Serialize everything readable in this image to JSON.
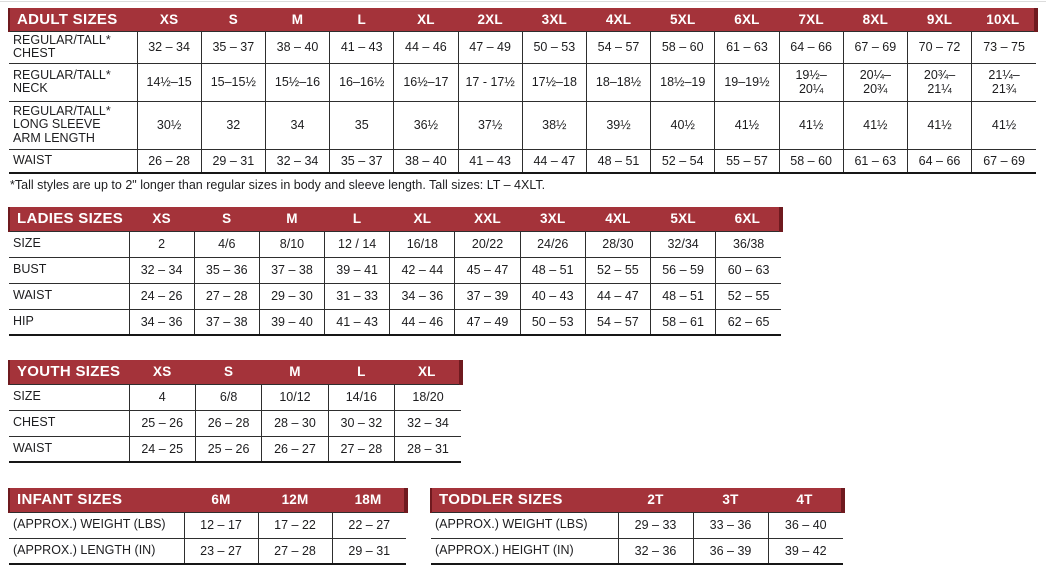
{
  "palette": {
    "header_bg": "#A4333A",
    "header_edge": "#6F1A1F",
    "header_text": "#FFFFFF",
    "line": "#2E2E2E",
    "line_heavy": "#161616",
    "text": "#1D1D1F"
  },
  "tables": [
    {
      "id": "adult-sizes",
      "title": "ADULT SIZES",
      "columns": [
        "XS",
        "S",
        "M",
        "L",
        "XL",
        "2XL",
        "3XL",
        "4XL",
        "5XL",
        "6XL",
        "7XL",
        "8XL",
        "9XL",
        "10XL"
      ],
      "rows": [
        {
          "label": "REGULAR/TALL*\nCHEST",
          "values": [
            "32 – 34",
            "35 – 37",
            "38 – 40",
            "41 – 43",
            "44 – 46",
            "47 – 49",
            "50 – 53",
            "54 – 57",
            "58 – 60",
            "61 – 63",
            "64 – 66",
            "67 – 69",
            "70 – 72",
            "73 – 75"
          ]
        },
        {
          "label": "REGULAR/TALL*\nNECK",
          "values": [
            "14½–15",
            "15–15½",
            "15½–16",
            "16–16½",
            "16½–17",
            "17 - 17½",
            "17½–18",
            "18–18½",
            "18½–19",
            "19–19½",
            "19½–\n20¼",
            "20¼–\n20¾",
            "20¾–\n21¼",
            "21¼–\n21¾"
          ]
        },
        {
          "label": "REGULAR/TALL*\nLONG SLEEVE\nARM LENGTH",
          "values": [
            "30½",
            "32",
            "34",
            "35",
            "36½",
            "37½",
            "38½",
            "39½",
            "40½",
            "41½",
            "41½",
            "41½",
            "41½",
            "41½"
          ]
        },
        {
          "label": "WAIST",
          "values": [
            "26 – 28",
            "29 – 31",
            "32 – 34",
            "35 – 37",
            "38 – 40",
            "41 – 43",
            "44 – 47",
            "48 – 51",
            "52 – 54",
            "55 – 57",
            "58 – 60",
            "61 – 63",
            "64 – 66",
            "67 – 69"
          ]
        }
      ],
      "footnote": "*Tall styles are up to 2\" longer than regular sizes in body and sleeve length. Tall sizes: LT – 4XLT."
    },
    {
      "id": "ladies-sizes",
      "title": "LADIES SIZES",
      "columns": [
        "XS",
        "S",
        "M",
        "L",
        "XL",
        "XXL",
        "3XL",
        "4XL",
        "5XL",
        "6XL"
      ],
      "rows": [
        {
          "label": "SIZE",
          "values": [
            "2",
            "4/6",
            "8/10",
            "12 / 14",
            "16/18",
            "20/22",
            "24/26",
            "28/30",
            "32/34",
            "36/38"
          ]
        },
        {
          "label": "BUST",
          "values": [
            "32 – 34",
            "35 – 36",
            "37 – 38",
            "39 – 41",
            "42 – 44",
            "45 – 47",
            "48 – 51",
            "52 – 55",
            "56 – 59",
            "60 – 63"
          ]
        },
        {
          "label": "WAIST",
          "values": [
            "24 – 26",
            "27 – 28",
            "29 – 30",
            "31 – 33",
            "34 – 36",
            "37 – 39",
            "40 – 43",
            "44 – 47",
            "48 – 51",
            "52 – 55"
          ]
        },
        {
          "label": "HIP",
          "values": [
            "34 – 36",
            "37 – 38",
            "39 – 40",
            "41 – 43",
            "44 – 46",
            "47 – 49",
            "50 – 53",
            "54 – 57",
            "58 – 61",
            "62 – 65"
          ]
        }
      ]
    },
    {
      "id": "youth-sizes",
      "title": "YOUTH SIZES",
      "columns": [
        "XS",
        "S",
        "M",
        "L",
        "XL"
      ],
      "rows": [
        {
          "label": "SIZE",
          "values": [
            "4",
            "6/8",
            "10/12",
            "14/16",
            "18/20"
          ]
        },
        {
          "label": "CHEST",
          "values": [
            "25 – 26",
            "26 – 28",
            "28 – 30",
            "30 – 32",
            "32 – 34"
          ]
        },
        {
          "label": "WAIST",
          "values": [
            "24 – 25",
            "25 – 26",
            "26 – 27",
            "27 – 28",
            "28 – 31"
          ]
        }
      ]
    },
    {
      "id": "infant-sizes",
      "title": "INFANT SIZES",
      "columns": [
        "6M",
        "12M",
        "18M"
      ],
      "rows": [
        {
          "label": "(APPROX.) WEIGHT (LBS)",
          "values": [
            "12 – 17",
            "17 – 22",
            "22 – 27"
          ]
        },
        {
          "label": "(APPROX.) LENGTH (IN)",
          "values": [
            "23 – 27",
            "27 – 28",
            "29 – 31"
          ]
        }
      ]
    },
    {
      "id": "toddler-sizes",
      "title": "TODDLER SIZES",
      "columns": [
        "2T",
        "3T",
        "4T"
      ],
      "rows": [
        {
          "label": "(APPROX.) WEIGHT (LBS)",
          "values": [
            "29 – 33",
            "33 – 36",
            "36 – 40"
          ]
        },
        {
          "label": "(APPROX.) HEIGHT (IN)",
          "values": [
            "32 – 36",
            "36 – 39",
            "39 – 42"
          ]
        }
      ]
    }
  ]
}
